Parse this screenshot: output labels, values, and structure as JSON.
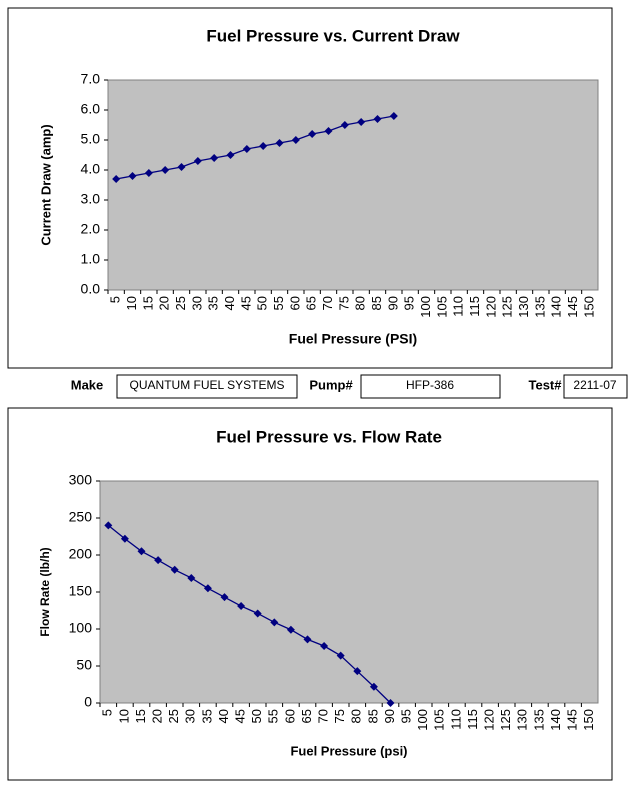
{
  "chart_data": [
    {
      "type": "line",
      "title": "Fuel Pressure vs. Current Draw",
      "x_label": "Fuel Pressure (PSI)",
      "y_label": "Current Draw (amp)",
      "categories": [
        5,
        10,
        15,
        20,
        25,
        30,
        35,
        40,
        45,
        50,
        55,
        60,
        65,
        70,
        75,
        80,
        85,
        90,
        95,
        100,
        105,
        110,
        115,
        120,
        125,
        130,
        135,
        140,
        145,
        150
      ],
      "values": [
        3.7,
        3.8,
        3.9,
        4.0,
        4.1,
        4.3,
        4.4,
        4.5,
        4.7,
        4.8,
        4.9,
        5.0,
        5.2,
        5.3,
        5.5,
        5.6,
        5.7,
        5.8,
        null,
        null,
        null,
        null,
        null,
        null,
        null,
        null,
        null,
        null,
        null,
        null
      ],
      "color": "#000080",
      "grid": false,
      "ylim": [
        0,
        7
      ],
      "yticks": [
        {
          "value": 0,
          "label": "0.0"
        },
        {
          "value": 1,
          "label": "1.0"
        },
        {
          "value": 2,
          "label": "2.0"
        },
        {
          "value": 3,
          "label": "3.0"
        },
        {
          "value": 4,
          "label": "4.0"
        },
        {
          "value": 5,
          "label": "5.0"
        },
        {
          "value": 6,
          "label": "6.0"
        },
        {
          "value": 7,
          "label": "7.0"
        }
      ]
    },
    {
      "type": "line",
      "title": "Fuel Pressure vs. Flow Rate",
      "x_label": "Fuel Pressure (psi)",
      "y_label": "Flow Rate (lb/h)",
      "categories": [
        5,
        10,
        15,
        20,
        25,
        30,
        35,
        40,
        45,
        50,
        55,
        60,
        65,
        70,
        75,
        80,
        85,
        90,
        95,
        100,
        105,
        110,
        115,
        120,
        125,
        130,
        135,
        140,
        145,
        150
      ],
      "values": [
        240,
        222,
        205,
        193,
        180,
        169,
        155,
        143,
        131,
        121,
        109,
        99,
        86,
        77,
        64,
        43,
        22,
        0,
        null,
        null,
        null,
        null,
        null,
        null,
        null,
        null,
        null,
        null,
        null,
        null
      ],
      "color": "#000080",
      "grid": false,
      "ylim": [
        0,
        300
      ],
      "yticks": [
        0,
        50,
        100,
        150,
        200,
        250,
        300
      ]
    }
  ],
  "form": {
    "make_label": "Make",
    "make": "QUANTUM FUEL SYSTEMS",
    "pump_label": "Pump#",
    "pump": "HFP-386",
    "test_label": "Test#",
    "test": "2211-07"
  }
}
